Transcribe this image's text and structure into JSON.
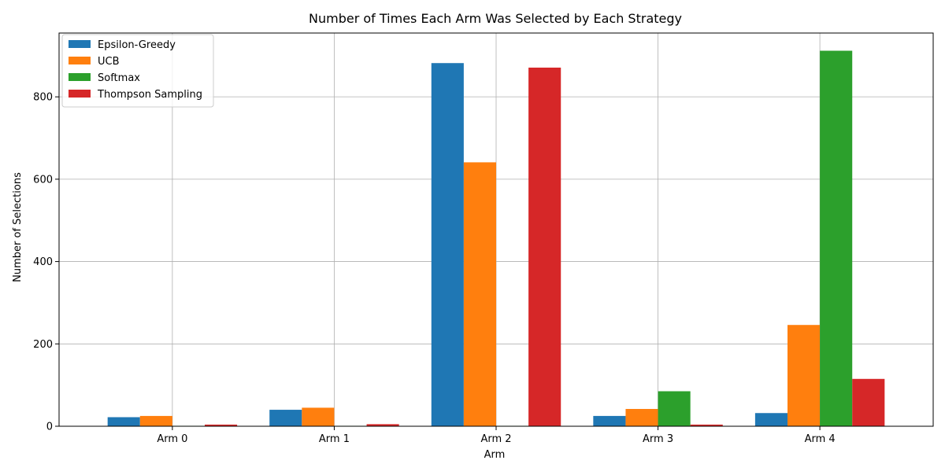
{
  "chart_data": {
    "type": "bar",
    "title": "Number of Times Each Arm Was Selected by Each Strategy",
    "xlabel": "Arm",
    "ylabel": "Number of Selections",
    "categories": [
      "Arm 0",
      "Arm 1",
      "Arm 2",
      "Arm 3",
      "Arm 4"
    ],
    "ylim": [
      0,
      955
    ],
    "yticks": [
      0,
      200,
      400,
      600,
      800
    ],
    "grid": true,
    "legend_position": "top-left",
    "series": [
      {
        "name": "Epsilon-Greedy",
        "color": "#1f77b4",
        "values": [
          22,
          40,
          882,
          25,
          32
        ]
      },
      {
        "name": "UCB",
        "color": "#ff7f0e",
        "values": [
          25,
          45,
          641,
          42,
          246
        ]
      },
      {
        "name": "Softmax",
        "color": "#2ca02c",
        "values": [
          1,
          1,
          1,
          85,
          912
        ]
      },
      {
        "name": "Thompson Sampling",
        "color": "#d62728",
        "values": [
          4,
          5,
          871,
          4,
          115
        ]
      }
    ]
  }
}
